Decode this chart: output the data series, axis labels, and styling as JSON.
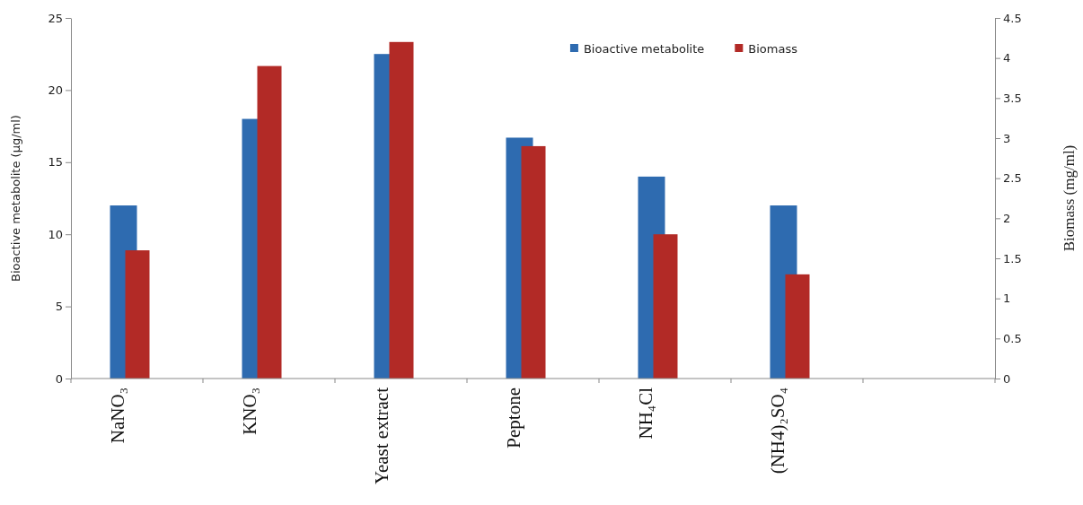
{
  "chart_data": {
    "type": "bar",
    "ylabel": "Bioactive metabolite (µg/ml)",
    "y2label": "Biomass (mg/ml)",
    "categories": [
      "NaNO₃",
      "KNO₃",
      "Yeast extract",
      "Peptone",
      "NH₄Cl",
      "(NH4)₂SO₄",
      null
    ],
    "series": [
      {
        "name": "Bioactive metabolite",
        "color": "#2e6bb0",
        "values": [
          12,
          18,
          22.5,
          16.7,
          14,
          12,
          null
        ]
      },
      {
        "name": "Biomass",
        "color": "#b22a26",
        "axis": "y2",
        "values": [
          1.6,
          3.9,
          4.2,
          2.9,
          1.8,
          1.3,
          null
        ]
      }
    ],
    "ylim": [
      0,
      25
    ],
    "yticks": [
      0,
      5,
      10,
      15,
      20,
      25
    ],
    "y2lim": [
      0,
      4.5
    ],
    "y2ticks": [
      0,
      0.5,
      1,
      1.5,
      2,
      2.5,
      3,
      3.5,
      4,
      4.5
    ],
    "legend": "top right",
    "grid": false
  }
}
